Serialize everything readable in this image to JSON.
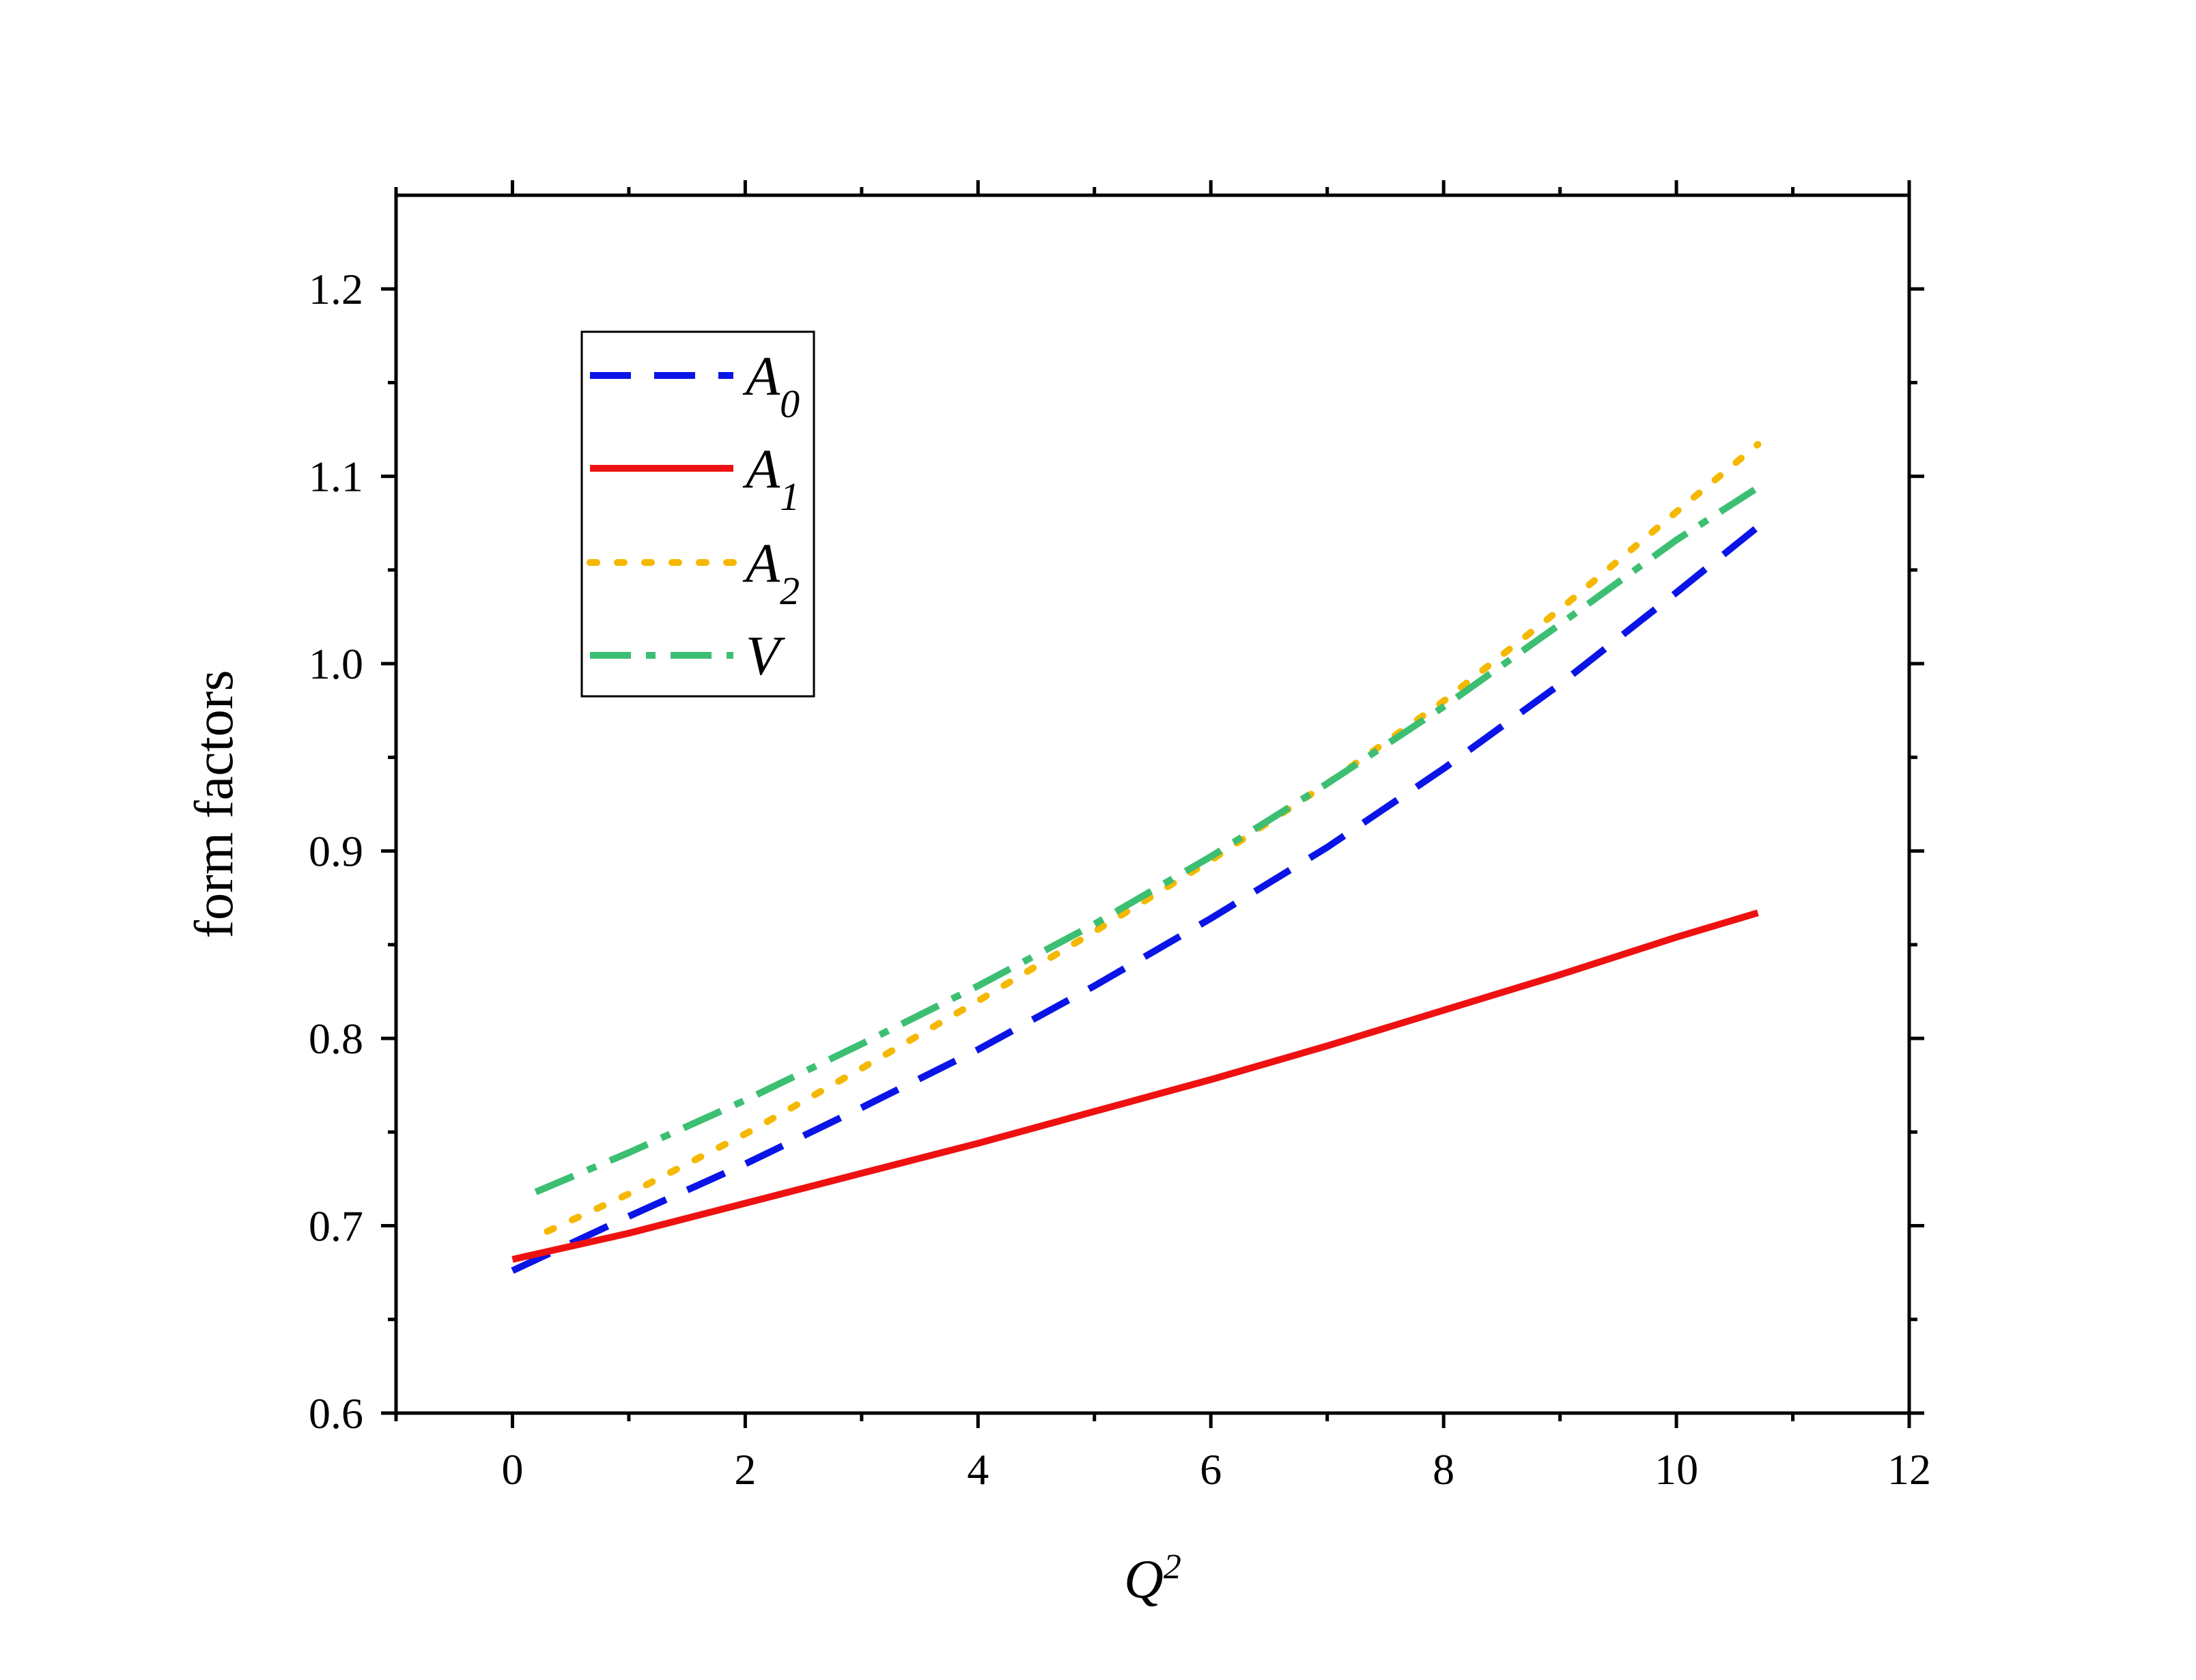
{
  "chart_data": {
    "type": "line",
    "title": "",
    "xlabel": "Q",
    "xlabel_sup": "2",
    "ylabel": "form factors",
    "xlim": [
      -1,
      12
    ],
    "ylim": [
      0.6,
      1.25
    ],
    "x_ticks": [
      0,
      2,
      4,
      6,
      8,
      10,
      12
    ],
    "x_tick_labels": [
      "0",
      "2",
      "4",
      "6",
      "8",
      "10",
      "12"
    ],
    "y_ticks": [
      0.6,
      0.7,
      0.8,
      0.9,
      1.0,
      1.1,
      1.2
    ],
    "y_tick_labels": [
      "0.6",
      "0.7",
      "0.8",
      "0.9",
      "1.0",
      "1.1",
      "1.2"
    ],
    "grid": false,
    "legend_position": "top-left",
    "series": [
      {
        "name": "A",
        "name_sub": "0",
        "color": "#0a14e6",
        "style": "dash",
        "x": [
          0,
          1,
          2,
          3,
          4,
          5,
          6,
          7,
          8,
          9,
          10,
          10.7
        ],
        "values": [
          0.676,
          0.705,
          0.733,
          0.763,
          0.794,
          0.828,
          0.864,
          0.902,
          0.944,
          0.989,
          1.038,
          1.073
        ]
      },
      {
        "name": "A",
        "name_sub": "1",
        "color": "#ee1111",
        "style": "solid",
        "x": [
          0,
          1,
          2,
          3,
          4,
          5,
          6,
          7,
          8,
          9,
          10,
          10.7
        ],
        "values": [
          0.682,
          0.696,
          0.712,
          0.728,
          0.744,
          0.761,
          0.778,
          0.796,
          0.815,
          0.834,
          0.854,
          0.867
        ]
      },
      {
        "name": "A",
        "name_sub": "2",
        "color": "#f5b800",
        "style": "dot",
        "x": [
          0.3,
          1,
          2,
          3,
          4,
          5,
          6,
          7,
          8,
          9,
          10,
          10.7
        ],
        "values": [
          0.697,
          0.717,
          0.749,
          0.784,
          0.82,
          0.857,
          0.895,
          0.936,
          0.98,
          1.029,
          1.081,
          1.117
        ]
      },
      {
        "name": "V",
        "name_sub": "",
        "color": "#3cbf72",
        "style": "dashdot",
        "x": [
          0.2,
          1,
          2,
          3,
          4,
          5,
          6,
          7,
          8,
          9,
          10,
          10.7
        ],
        "values": [
          0.718,
          0.739,
          0.767,
          0.797,
          0.828,
          0.861,
          0.897,
          0.936,
          0.977,
          1.021,
          1.066,
          1.094
        ]
      }
    ]
  }
}
